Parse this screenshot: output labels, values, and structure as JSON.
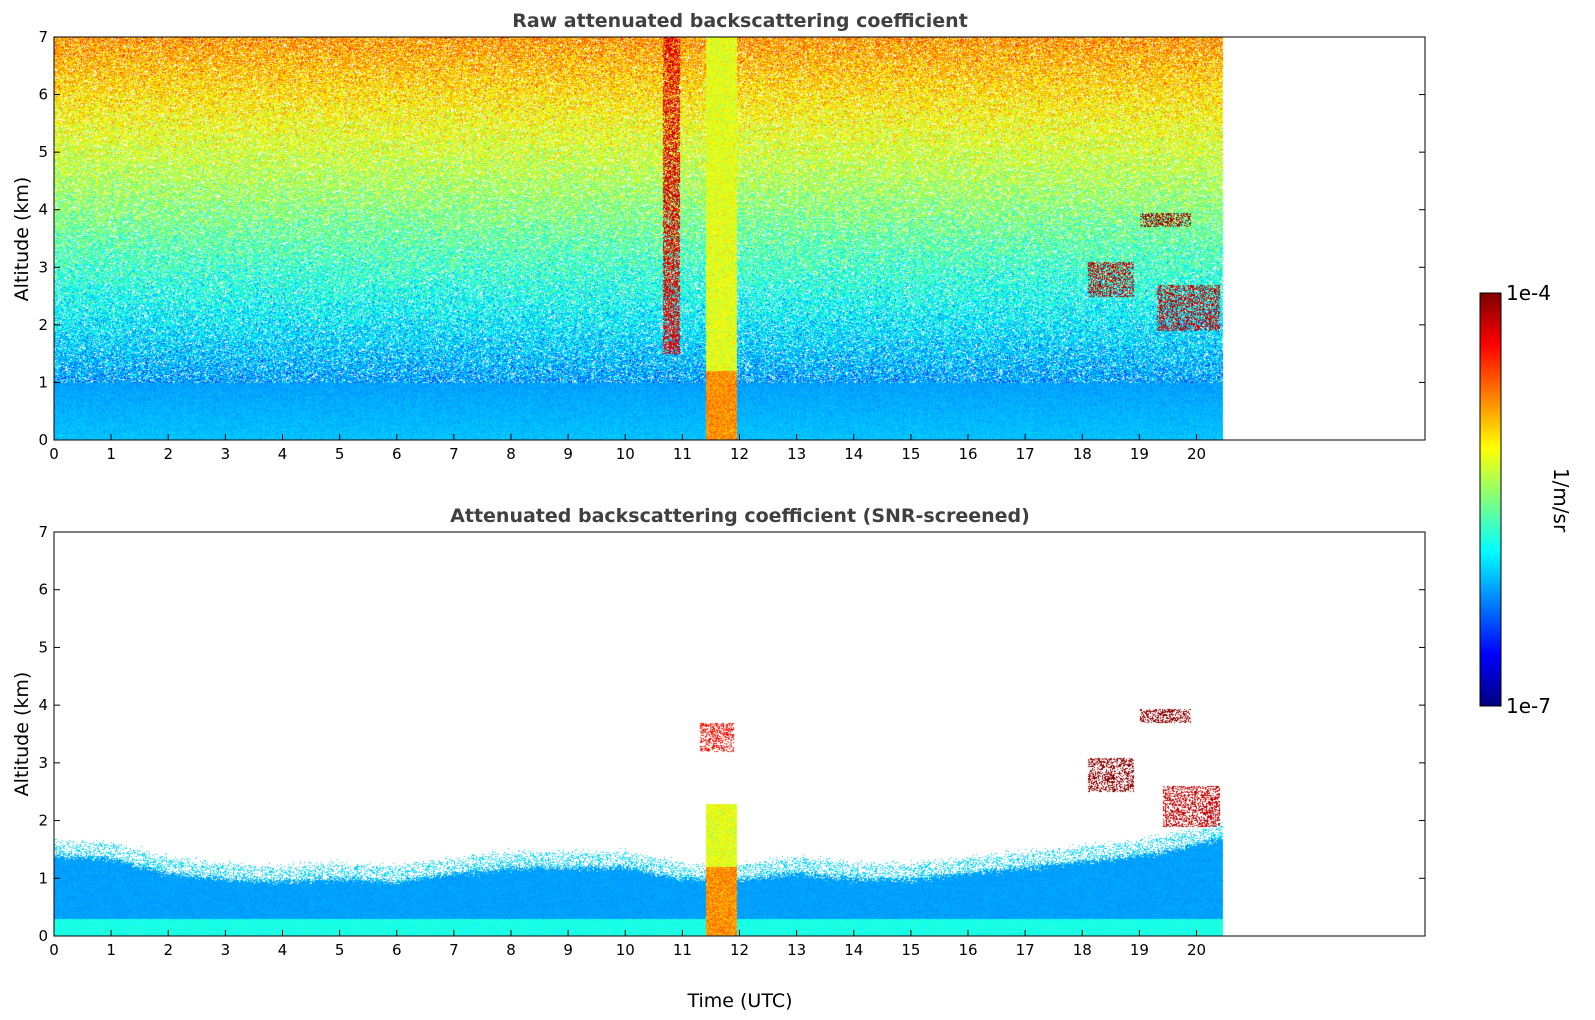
{
  "colors": {
    "jet": [
      "#00007f",
      "#0000ff",
      "#007fff",
      "#00ffff",
      "#7fff7f",
      "#ffff00",
      "#ff7f00",
      "#ff0000",
      "#7f0000"
    ],
    "axes": "#000000",
    "title": "#404040"
  },
  "colorbar": {
    "max_label": "1e-4",
    "min_label": "1e-7",
    "unit_label": "1/m/sr",
    "scale": "log"
  },
  "chart_data": [
    {
      "type": "heatmap",
      "title": "Raw attenuated backscattering coefficient",
      "xlabel": "",
      "ylabel": "Altitude (km)",
      "xlim": [
        0,
        24
      ],
      "ylim": [
        0,
        7
      ],
      "x_ticks": [
        "0",
        "1",
        "2",
        "3",
        "4",
        "5",
        "6",
        "7",
        "8",
        "9",
        "10",
        "11",
        "12",
        "13",
        "14",
        "15",
        "16",
        "17",
        "18",
        "19",
        "20"
      ],
      "y_ticks": [
        "0",
        "1",
        "2",
        "3",
        "4",
        "5",
        "6",
        "7"
      ],
      "data_extent_x": [
        0,
        20.45
      ],
      "features": [
        {
          "feature": "noise_field",
          "altitude_km": [
            0,
            7
          ],
          "log10_value_range": [
            -6.4,
            -4.6
          ]
        },
        {
          "feature": "boundary_layer",
          "time_utc": [
            0,
            20.45
          ],
          "altitude_km": [
            0,
            1.0
          ],
          "log10_value": -6.1
        },
        {
          "feature": "precipitation_column",
          "time_utc": [
            11.4,
            11.95
          ],
          "altitude_km": [
            0,
            7
          ],
          "log10_value": -5.2
        },
        {
          "feature": "cloud_column",
          "time_utc": [
            10.65,
            10.95
          ],
          "altitude_km": [
            1.5,
            7
          ],
          "log10_value": -4.3
        },
        {
          "feature": "cloud_layer",
          "time_utc": [
            19.0,
            19.9
          ],
          "altitude_km": [
            3.7,
            3.95
          ],
          "log10_value": -4.1
        },
        {
          "feature": "cloud_patches",
          "time_utc": [
            18.1,
            18.9
          ],
          "altitude_km": [
            2.5,
            3.1
          ],
          "log10_value": -4.2
        },
        {
          "feature": "cloud_patches",
          "time_utc": [
            19.3,
            20.4
          ],
          "altitude_km": [
            1.9,
            2.7
          ],
          "log10_value": -4.2
        }
      ]
    },
    {
      "type": "heatmap",
      "title": "Attenuated backscattering coefficient (SNR-screened)",
      "xlabel": "Time (UTC)",
      "ylabel": "Altitude (km)",
      "xlim": [
        0,
        24
      ],
      "ylim": [
        0,
        7
      ],
      "x_ticks": [
        "0",
        "1",
        "2",
        "3",
        "4",
        "5",
        "6",
        "7",
        "8",
        "9",
        "10",
        "11",
        "12",
        "13",
        "14",
        "15",
        "16",
        "17",
        "18",
        "19",
        "20"
      ],
      "y_ticks": [
        "0",
        "1",
        "2",
        "3",
        "4",
        "5",
        "6",
        "7"
      ],
      "data_extent_x": [
        0,
        20.45
      ],
      "boundary_layer_top_km": [
        [
          0,
          1.4
        ],
        [
          1,
          1.35
        ],
        [
          2,
          1.1
        ],
        [
          3,
          1.0
        ],
        [
          4,
          0.95
        ],
        [
          5,
          1.0
        ],
        [
          6,
          0.95
        ],
        [
          7,
          1.1
        ],
        [
          8,
          1.2
        ],
        [
          9,
          1.2
        ],
        [
          10,
          1.2
        ],
        [
          11,
          1.0
        ],
        [
          12,
          1.0
        ],
        [
          13,
          1.1
        ],
        [
          14,
          1.0
        ],
        [
          15,
          1.0
        ],
        [
          16,
          1.1
        ],
        [
          17,
          1.2
        ],
        [
          18,
          1.3
        ],
        [
          19,
          1.4
        ],
        [
          20,
          1.6
        ],
        [
          20.45,
          1.7
        ]
      ],
      "features": [
        {
          "feature": "boundary_layer",
          "time_utc": [
            0,
            20.45
          ],
          "altitude_km": [
            0,
            1.3
          ],
          "log10_value": -6.1
        },
        {
          "feature": "precipitation_column",
          "time_utc": [
            11.4,
            11.95
          ],
          "altitude_km": [
            0,
            2.3
          ],
          "log10_value": -5.2
        },
        {
          "feature": "cloud_layer",
          "time_utc": [
            19.0,
            19.9
          ],
          "altitude_km": [
            3.7,
            3.95
          ],
          "log10_value": -4.0
        },
        {
          "feature": "cloud_patches",
          "time_utc": [
            18.1,
            18.9
          ],
          "altitude_km": [
            2.5,
            3.1
          ],
          "log10_value": -4.0
        },
        {
          "feature": "cloud_patches",
          "time_utc": [
            19.4,
            20.4
          ],
          "altitude_km": [
            1.9,
            2.6
          ],
          "log10_value": -4.2
        },
        {
          "feature": "cloud_patches",
          "time_utc": [
            11.3,
            11.9
          ],
          "altitude_km": [
            3.2,
            3.7
          ],
          "log10_value": -4.4
        }
      ]
    }
  ]
}
